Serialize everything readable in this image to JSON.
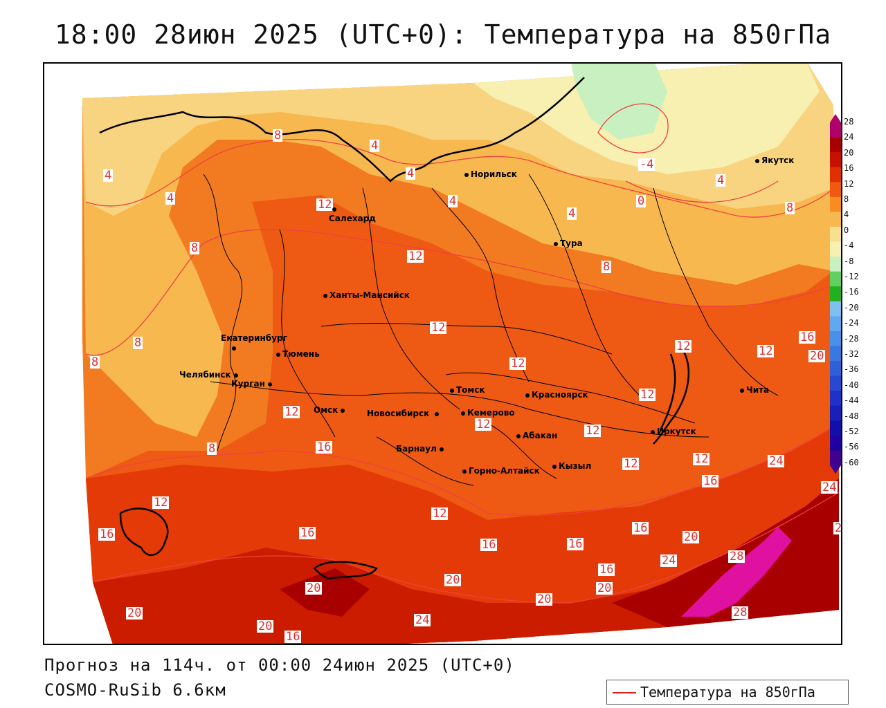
{
  "title": "18:00 28июн 2025 (UTC+0): Температура на 850гПа",
  "footer": {
    "forecast": "Прогноз на 114ч. от 00:00 24июн 2025 (UTC+0)",
    "model": "COSMO-RuSib 6.6км"
  },
  "legend": {
    "label": "Температура на 850гПа",
    "line_color": "#e02020"
  },
  "colorbar": {
    "ticks": [
      "28",
      "24",
      "20",
      "16",
      "12",
      "8",
      "4",
      "0",
      "-4",
      "-8",
      "-12",
      "-16",
      "-20",
      "-24",
      "-28",
      "-32",
      "-36",
      "-40",
      "-44",
      "-48",
      "-52",
      "-56",
      "-60"
    ],
    "colors": [
      "#b0006c",
      "#a80000",
      "#c81000",
      "#e03000",
      "#f05a10",
      "#f88c20",
      "#f8b850",
      "#f8e090",
      "#f8f0b0",
      "#c8f0c0",
      "#60d060",
      "#20b020",
      "#80c0f0",
      "#60a8f0",
      "#4890e8",
      "#3878e0",
      "#3060d8",
      "#2848d0",
      "#2030c8",
      "#1820b8",
      "#1010a8",
      "#2000a0",
      "#400090"
    ]
  },
  "cities": [
    {
      "name": "Норильск"
    },
    {
      "name": "Якутск"
    },
    {
      "name": "Салехард"
    },
    {
      "name": "Тура"
    },
    {
      "name": "Ханты-Мансийск"
    },
    {
      "name": "Екатеринбург"
    },
    {
      "name": "Тюмень"
    },
    {
      "name": "Челябинск"
    },
    {
      "name": "Курган"
    },
    {
      "name": "Омск"
    },
    {
      "name": "Новосибирск"
    },
    {
      "name": "Томск"
    },
    {
      "name": "Кемерово"
    },
    {
      "name": "Красноярск"
    },
    {
      "name": "Барнаул"
    },
    {
      "name": "Абакан"
    },
    {
      "name": "Кызыл"
    },
    {
      "name": "Горно-Алтайск"
    },
    {
      "name": "Иркутск"
    },
    {
      "name": "Чита"
    }
  ],
  "contour_labels": [
    "-4",
    "0",
    "4",
    "4",
    "4",
    "4",
    "4",
    "4",
    "4",
    "8",
    "8",
    "8",
    "8",
    "8",
    "8",
    "8",
    "12",
    "12",
    "12",
    "12",
    "12",
    "12",
    "12",
    "12",
    "12",
    "12",
    "12",
    "12",
    "12",
    "12",
    "16",
    "16",
    "16",
    "16",
    "16",
    "16",
    "16",
    "16",
    "16",
    "16",
    "20",
    "20",
    "20",
    "20",
    "20",
    "20",
    "20",
    "20",
    "24",
    "24",
    "24",
    "24",
    "28",
    "28",
    "2"
  ]
}
